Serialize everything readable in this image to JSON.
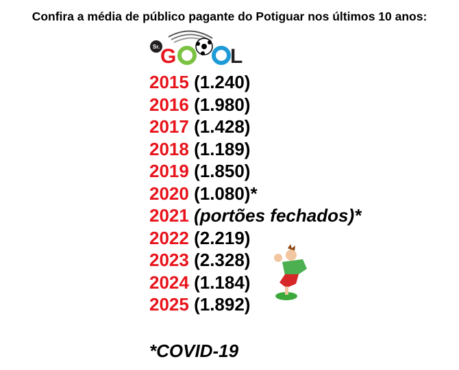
{
  "title": "Confira a média de público pagante do Potiguar nos últimos 10 anos:",
  "logo": {
    "text": "Sr. GOOOL",
    "colors": {
      "g": "#e8141c",
      "o1": "#7cc242",
      "o2": "#1e9ad6",
      "l": "#231f20"
    }
  },
  "rows": [
    {
      "year": "2015",
      "value": "(1.240)"
    },
    {
      "year": "2016",
      "value": "(1.980)"
    },
    {
      "year": "2017",
      "value": "(1.428)"
    },
    {
      "year": "2018",
      "value": "(1.189)"
    },
    {
      "year": "2019",
      "value": "(1.850)"
    },
    {
      "year": "2020",
      "value": "(1.080)*"
    },
    {
      "year": "2021",
      "value": "(portões fechados)*",
      "italic": true
    },
    {
      "year": "2022",
      "value": "(2.219)"
    },
    {
      "year": "2023",
      "value": "(2.328)"
    },
    {
      "year": "2024",
      "value": "(1.184)"
    },
    {
      "year": "2025",
      "value": "(1.892)"
    }
  ],
  "footnote": "*COVID-19",
  "colors": {
    "year": "#e8141c",
    "value": "#000000"
  }
}
